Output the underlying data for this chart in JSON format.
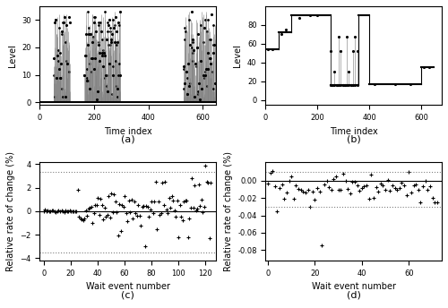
{
  "fig_width": 5.0,
  "fig_height": 3.44,
  "dpi": 100,
  "subplot_labels": [
    "(a)",
    "(b)",
    "(c)",
    "(d)"
  ],
  "panel_a": {
    "xlabel": "Time index",
    "ylabel": "Level",
    "xlim": [
      0,
      650
    ],
    "ylim": [
      -1,
      35
    ],
    "xticks": [
      0,
      200,
      400,
      600
    ],
    "yticks": [
      0,
      10,
      20,
      30
    ]
  },
  "panel_b": {
    "xlabel": "Time index",
    "ylabel": "Level",
    "xlim": [
      0,
      680
    ],
    "ylim": [
      -5,
      100
    ],
    "xticks": [
      0,
      200,
      400,
      600
    ],
    "yticks": [
      0,
      20,
      40,
      60,
      80
    ]
  },
  "panel_c": {
    "xlabel": "Wait event number",
    "ylabel": "Relative rate of change (%)",
    "xlim": [
      -3,
      128
    ],
    "ylim": [
      -4.2,
      4.2
    ],
    "xticks": [
      0,
      20,
      40,
      60,
      80,
      100,
      120
    ],
    "yticks": [
      -4,
      -2,
      0,
      2,
      4
    ],
    "hline_y": 0.0,
    "dashed_upper": 3.3,
    "dashed_lower": -3.5
  },
  "panel_d": {
    "xlabel": "Wait event number",
    "ylabel": "Relative rate of change (%)",
    "xlim": [
      -1,
      74
    ],
    "ylim": [
      -0.092,
      0.022
    ],
    "xticks": [
      0,
      20,
      40,
      60
    ],
    "yticks": [
      -0.08,
      -0.06,
      -0.04,
      -0.02,
      0.0
    ],
    "hline_y": 0.0,
    "dashed_upper": 0.01,
    "dashed_lower": -0.03
  },
  "marker_color": "black",
  "line_color": "black",
  "bg_color": "white"
}
